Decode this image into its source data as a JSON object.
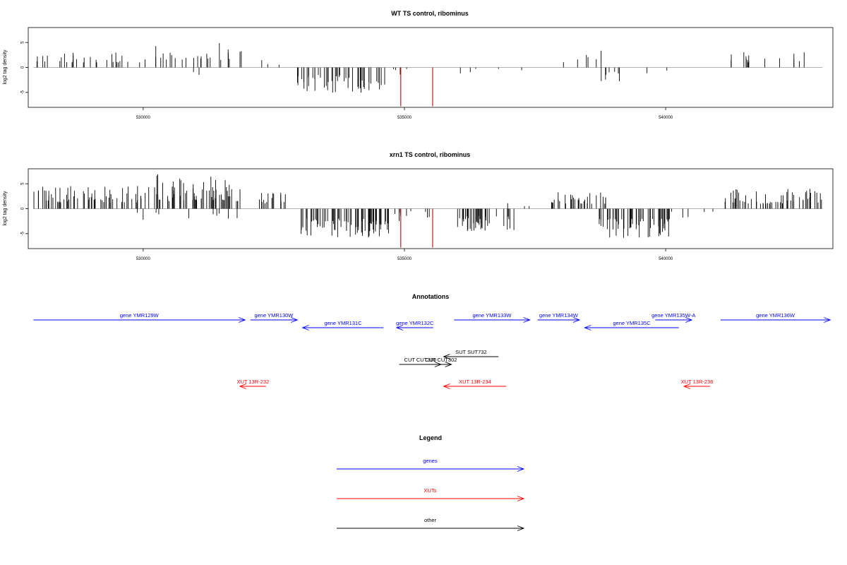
{
  "chart_data": [
    {
      "type": "bar",
      "title": "WT TS control, ribominus",
      "ylabel": "log2 tag density",
      "xlim": [
        527800,
        543200
      ],
      "ylim": [
        -8,
        8
      ],
      "x_ticks": [
        530000,
        535000,
        540000
      ],
      "y_ticks": [
        -5,
        0,
        5
      ],
      "baseline_color": "#999999",
      "bar_color": "#000000",
      "highlight_color": "#cc0000",
      "segments": [
        {
          "strand": "plus",
          "start": 527900,
          "end": 530000,
          "density": 14,
          "min": 1.0,
          "max": 3.2,
          "seed": 11
        },
        {
          "strand": "plus",
          "start": 530000,
          "end": 531000,
          "density": 12,
          "min": 1.5,
          "max": 4.5,
          "seed": 12
        },
        {
          "strand": "plus",
          "start": 531000,
          "end": 531900,
          "density": 14,
          "min": 1.5,
          "max": 5.8,
          "seed": 13
        },
        {
          "strand": "plus",
          "start": 532100,
          "end": 532800,
          "density": 4,
          "min": 0.5,
          "max": 3.0,
          "seed": 14
        },
        {
          "strand": "minus",
          "start": 530900,
          "end": 531600,
          "density": 3,
          "min": 0.8,
          "max": 2.2,
          "seed": 15
        },
        {
          "strand": "minus",
          "start": 532900,
          "end": 534000,
          "density": 28,
          "min": 1.5,
          "max": 5.2,
          "seed": 16
        },
        {
          "strand": "minus",
          "start": 534000,
          "end": 534700,
          "density": 24,
          "min": 2.5,
          "max": 6.0,
          "seed": 17
        },
        {
          "strand": "minus",
          "start": 534700,
          "end": 535600,
          "density": 4,
          "min": 0.3,
          "max": 1.6,
          "seed": 18
        },
        {
          "strand": "minus",
          "start": 536000,
          "end": 537500,
          "density": 3,
          "min": 0.3,
          "max": 1.5,
          "seed": 19
        },
        {
          "strand": "plus",
          "start": 537800,
          "end": 538800,
          "density": 6,
          "min": 1.0,
          "max": 3.5,
          "seed": 20
        },
        {
          "strand": "minus",
          "start": 538600,
          "end": 539900,
          "density": 6,
          "min": 0.8,
          "max": 3.2,
          "seed": 21
        },
        {
          "strand": "minus",
          "start": 539900,
          "end": 540400,
          "density": 2,
          "min": 0.5,
          "max": 1.5,
          "seed": 22
        },
        {
          "strand": "plus",
          "start": 541100,
          "end": 543000,
          "density": 8,
          "min": 1.0,
          "max": 3.4,
          "seed": 23
        }
      ],
      "highlights": [
        {
          "x": 534930,
          "value": -7.8
        },
        {
          "x": 535540,
          "value": -7.8
        }
      ]
    },
    {
      "type": "bar",
      "title": "xrn1 TS control, ribominus",
      "ylabel": "log2 tag density",
      "xlim": [
        527800,
        543200
      ],
      "ylim": [
        -8,
        8
      ],
      "x_ticks": [
        530000,
        535000,
        540000
      ],
      "y_ticks": [
        -5,
        0,
        5
      ],
      "baseline_color": "#999999",
      "bar_color": "#000000",
      "highlight_color": "#cc0000",
      "segments": [
        {
          "strand": "plus",
          "start": 527900,
          "end": 530000,
          "density": 30,
          "min": 1.2,
          "max": 4.6,
          "seed": 31
        },
        {
          "strand": "plus",
          "start": 530000,
          "end": 531900,
          "density": 34,
          "min": 1.5,
          "max": 7.0,
          "seed": 32
        },
        {
          "strand": "plus",
          "start": 532100,
          "end": 532800,
          "density": 22,
          "min": 1.0,
          "max": 3.5,
          "seed": 33
        },
        {
          "strand": "minus",
          "start": 529800,
          "end": 531800,
          "density": 5,
          "min": 0.8,
          "max": 2.4,
          "seed": 34
        },
        {
          "strand": "minus",
          "start": 532900,
          "end": 534700,
          "density": 40,
          "min": 2.0,
          "max": 6.0,
          "seed": 35
        },
        {
          "strand": "minus",
          "start": 534700,
          "end": 535600,
          "density": 10,
          "min": 0.5,
          "max": 3.0,
          "seed": 36
        },
        {
          "strand": "minus",
          "start": 536000,
          "end": 537300,
          "density": 30,
          "min": 1.5,
          "max": 4.5,
          "seed": 37
        },
        {
          "strand": "plus",
          "start": 536800,
          "end": 537500,
          "density": 4,
          "min": 0.5,
          "max": 1.5,
          "seed": 38
        },
        {
          "strand": "plus",
          "start": 537800,
          "end": 538900,
          "density": 30,
          "min": 1.0,
          "max": 3.5,
          "seed": 39
        },
        {
          "strand": "minus",
          "start": 538700,
          "end": 540100,
          "density": 40,
          "min": 2.0,
          "max": 6.0,
          "seed": 40
        },
        {
          "strand": "minus",
          "start": 540100,
          "end": 541000,
          "density": 6,
          "min": 0.5,
          "max": 1.8,
          "seed": 41
        },
        {
          "strand": "plus",
          "start": 541100,
          "end": 543000,
          "density": 30,
          "min": 1.0,
          "max": 4.0,
          "seed": 42
        }
      ],
      "highlights": [
        {
          "x": 534930,
          "value": -7.8
        },
        {
          "x": 535540,
          "value": -7.8
        }
      ]
    }
  ],
  "annotations": {
    "title": "Annotations",
    "features": [
      {
        "label": "gene YMR129W",
        "start": 527900,
        "end": 531950,
        "direction": "right",
        "class": "gene"
      },
      {
        "label": "gene YMR130W",
        "start": 532050,
        "end": 532950,
        "direction": "right",
        "class": "gene"
      },
      {
        "label": "gene YMR131C",
        "start": 533050,
        "end": 534600,
        "direction": "left",
        "class": "gene"
      },
      {
        "label": "gene YMR132C",
        "start": 534850,
        "end": 535550,
        "direction": "left",
        "class": "gene"
      },
      {
        "label": "gene YMR133W",
        "start": 535950,
        "end": 537400,
        "direction": "right",
        "class": "gene"
      },
      {
        "label": "gene YMR134W",
        "start": 537550,
        "end": 538350,
        "direction": "right",
        "class": "gene"
      },
      {
        "label": "gene YMR135C",
        "start": 538450,
        "end": 540250,
        "direction": "left",
        "class": "gene"
      },
      {
        "label": "gene YMR135W-A",
        "start": 539800,
        "end": 540500,
        "direction": "right",
        "class": "gene"
      },
      {
        "label": "gene YMR136W",
        "start": 541050,
        "end": 543150,
        "direction": "right",
        "class": "gene"
      },
      {
        "label": "SUT SUT732",
        "start": 535750,
        "end": 536800,
        "direction": "left",
        "class": "other"
      },
      {
        "label": "CUT CUT300",
        "start": 534900,
        "end": 535700,
        "direction": "right",
        "class": "other"
      },
      {
        "label": "CUT CUT302",
        "start": 535500,
        "end": 535900,
        "direction": "right",
        "class": "other"
      },
      {
        "label": "XUT 13R-232",
        "start": 531850,
        "end": 532350,
        "direction": "left",
        "class": "xut"
      },
      {
        "label": "XUT 13R-234",
        "start": 535750,
        "end": 536950,
        "direction": "left",
        "class": "xut"
      },
      {
        "label": "XUT 13R-236",
        "start": 540350,
        "end": 540850,
        "direction": "left",
        "class": "xut"
      }
    ]
  },
  "legend": {
    "title": "Legend",
    "items": [
      {
        "label": "genes",
        "color": "#0000ff"
      },
      {
        "label": "XUTs",
        "color": "#ff0000"
      },
      {
        "label": "other",
        "color": "#000000"
      }
    ]
  },
  "colors": {
    "gene": "#0000ff",
    "xut": "#ff0000",
    "other": "#000000"
  }
}
